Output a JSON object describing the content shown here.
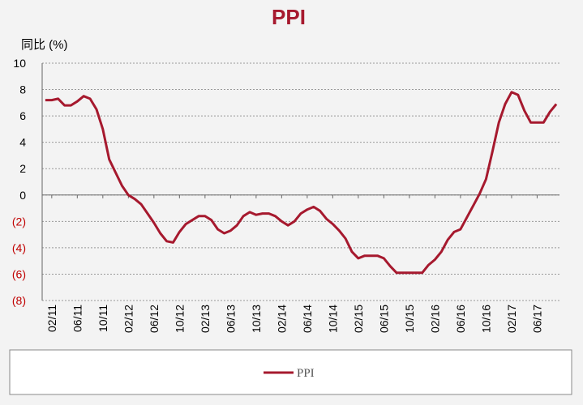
{
  "chart_data": {
    "type": "line",
    "title": "PPI",
    "y_label": "同比 (%)",
    "categories": [
      null,
      "02/11",
      null,
      null,
      null,
      "06/11",
      null,
      null,
      null,
      "10/11",
      null,
      null,
      null,
      "02/12",
      null,
      null,
      null,
      "06/12",
      null,
      null,
      null,
      "10/12",
      null,
      null,
      null,
      "02/13",
      null,
      null,
      null,
      "06/13",
      null,
      null,
      null,
      "10/13",
      null,
      null,
      null,
      "02/14",
      null,
      null,
      null,
      "06/14",
      null,
      null,
      null,
      "10/14",
      null,
      null,
      null,
      "02/15",
      null,
      null,
      null,
      "06/15",
      null,
      null,
      null,
      "10/15",
      null,
      null,
      null,
      "02/16",
      null,
      null,
      null,
      "06/16",
      null,
      null,
      null,
      "10/16",
      null,
      null,
      null,
      "02/17",
      null,
      null,
      null,
      "06/17",
      null,
      null,
      null
    ],
    "series": [
      {
        "name": "PPI",
        "color": "#a6192e",
        "values": [
          7.2,
          7.2,
          7.3,
          6.8,
          6.8,
          7.1,
          7.5,
          7.3,
          6.5,
          5.0,
          2.7,
          1.7,
          0.7,
          0.0,
          -0.3,
          -0.7,
          -1.4,
          -2.1,
          -2.9,
          -3.5,
          -3.6,
          -2.8,
          -2.2,
          -1.9,
          -1.6,
          -1.6,
          -1.9,
          -2.6,
          -2.9,
          -2.7,
          -2.3,
          -1.6,
          -1.3,
          -1.5,
          -1.4,
          -1.4,
          -1.6,
          -2.0,
          -2.3,
          -2.0,
          -1.4,
          -1.1,
          -0.9,
          -1.2,
          -1.8,
          -2.2,
          -2.7,
          -3.3,
          -4.3,
          -4.8,
          -4.6,
          -4.6,
          -4.6,
          -4.8,
          -5.4,
          -5.9,
          -5.9,
          -5.9,
          -5.9,
          -5.9,
          -5.3,
          -4.9,
          -4.3,
          -3.4,
          -2.8,
          -2.6,
          -1.7,
          -0.8,
          0.1,
          1.2,
          3.3,
          5.5,
          6.9,
          7.8,
          7.6,
          6.4,
          5.5,
          5.5,
          5.5,
          6.3,
          6.9
        ]
      }
    ],
    "ylim": [
      -8,
      10
    ],
    "yticks": [
      {
        "value": -8,
        "label": "(8)"
      },
      {
        "value": -6,
        "label": "(6)"
      },
      {
        "value": -4,
        "label": "(4)"
      },
      {
        "value": -2,
        "label": "(2)"
      },
      0,
      2,
      4,
      6,
      8,
      10
    ],
    "negative_tick_color": "#c00000",
    "grid": true
  }
}
